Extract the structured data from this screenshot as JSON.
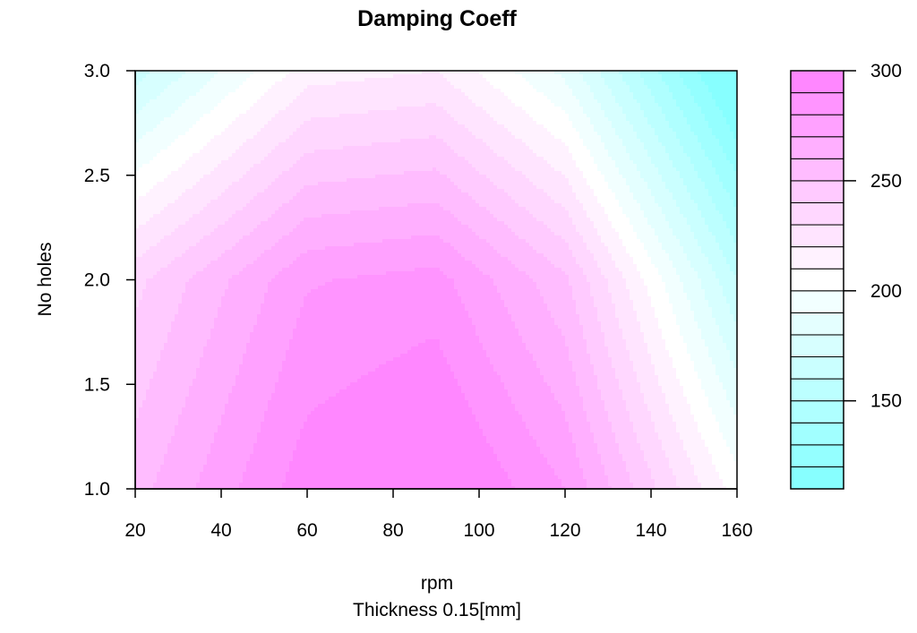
{
  "chart_data": {
    "type": "heatmap",
    "subtype": "filled-contour",
    "title": "Damping Coeff",
    "xlabel": "rpm",
    "sublabel": "Thickness 0.15[mm]",
    "ylabel": "No holes",
    "xlim": [
      20,
      160
    ],
    "ylim": [
      1.0,
      3.0
    ],
    "x_ticks": [
      20,
      40,
      60,
      80,
      100,
      120,
      140,
      160
    ],
    "y_ticks": [
      "1.0",
      "1.5",
      "2.0",
      "2.5",
      "3.0"
    ],
    "x": [
      20,
      60,
      90,
      120,
      160
    ],
    "y": [
      1.0,
      2.0,
      3.0
    ],
    "z": [
      [
        256,
        296,
        306,
        280,
        205
      ],
      [
        237,
        279,
        284,
        252,
        160
      ],
      [
        165,
        215,
        220,
        187,
        100
      ]
    ],
    "legend": {
      "placement": "right",
      "zlim": [
        110,
        300
      ],
      "levels": [
        110,
        120,
        130,
        140,
        150,
        160,
        170,
        180,
        190,
        200,
        210,
        220,
        230,
        240,
        250,
        260,
        270,
        280,
        290,
        300
      ],
      "tick_labels": [
        "150",
        "200",
        "250",
        "300"
      ]
    },
    "colors": {
      "low": "#80ffff",
      "mid": "#ffffff",
      "high": "#ff80ff"
    }
  }
}
